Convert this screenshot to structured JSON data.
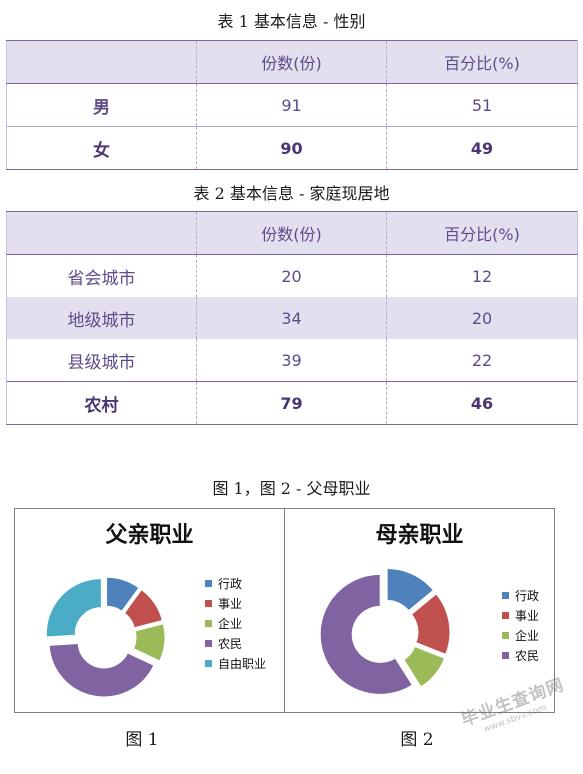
{
  "table1": {
    "caption": "表 1 基本信息 - 性别",
    "headers": [
      "",
      "份数(份)",
      "百分比(%)"
    ],
    "rows": [
      {
        "label": "男",
        "count": "91",
        "percent": "51"
      },
      {
        "label": "女",
        "count": "90",
        "percent": "49"
      }
    ]
  },
  "table2": {
    "caption": "表 2 基本信息 - 家庭现居地",
    "headers": [
      "",
      "份数(份)",
      "百分比(%)"
    ],
    "rows": [
      {
        "label": "省会城市",
        "count": "20",
        "percent": "12"
      },
      {
        "label": "地级城市",
        "count": "34",
        "percent": "20"
      },
      {
        "label": "县级城市",
        "count": "39",
        "percent": "22"
      },
      {
        "label": "农村",
        "count": "79",
        "percent": "46"
      }
    ]
  },
  "figures_caption": "图 1，图 2 - 父母职业",
  "chart_data": [
    {
      "type": "pie",
      "title": "父亲职业",
      "caption": "图 1",
      "categories": [
        "行政",
        "事业",
        "企业",
        "农民",
        "自由职业"
      ],
      "values": [
        10,
        11,
        11,
        42,
        26
      ],
      "colors": [
        "#4f81bd",
        "#c0504d",
        "#9bbb59",
        "#8064a2",
        "#4bacc6"
      ],
      "legend_position": "right",
      "style": "exploded-doughnut"
    },
    {
      "type": "pie",
      "title": "母亲职业",
      "caption": "图 2",
      "categories": [
        "行政",
        "事业",
        "企业",
        "农民"
      ],
      "values": [
        14,
        17,
        10,
        59
      ],
      "colors": [
        "#4f81bd",
        "#c0504d",
        "#9bbb59",
        "#8064a2"
      ],
      "legend_position": "right",
      "style": "exploded-doughnut"
    }
  ],
  "watermark": {
    "text": "毕业生查询网",
    "sub": "www.sbvv.com"
  }
}
